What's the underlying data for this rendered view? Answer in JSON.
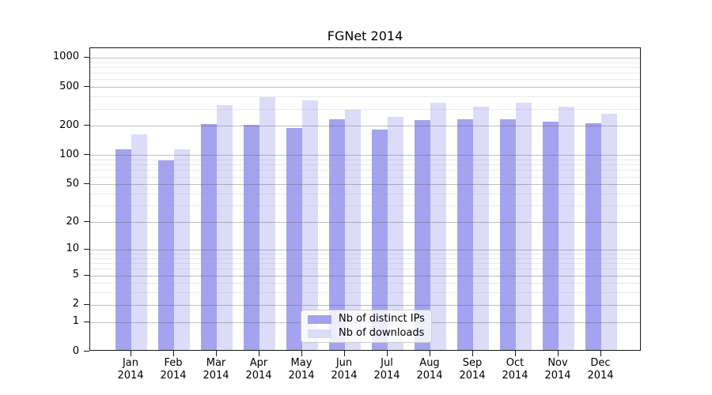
{
  "title": "FGNet 2014",
  "chart_data": {
    "type": "bar",
    "title": "FGNet 2014",
    "categories": [
      "Jan",
      "Feb",
      "Mar",
      "Apr",
      "May",
      "Jun",
      "Jul",
      "Aug",
      "Sep",
      "Oct",
      "Nov",
      "Dec"
    ],
    "category_year": "2014",
    "series": [
      {
        "name": "Nb of distinct IPs",
        "color": "#a3a3f0",
        "values": [
          110,
          85,
          201,
          198,
          183,
          225,
          178,
          222,
          225,
          224,
          215,
          205
        ]
      },
      {
        "name": "Nb of downloads",
        "color": "#dcdcf9",
        "values": [
          157,
          110,
          313,
          377,
          354,
          282,
          239,
          333,
          304,
          332,
          303,
          258
        ]
      }
    ],
    "yscale": "log1p",
    "yticks": [
      0,
      1,
      2,
      5,
      10,
      20,
      50,
      100,
      200,
      500,
      1000
    ],
    "minor_yticks": [
      3,
      4,
      6,
      7,
      8,
      9,
      30,
      40,
      60,
      70,
      80,
      90,
      300,
      400,
      600,
      700,
      800,
      900
    ],
    "ylim": [
      0,
      1250
    ],
    "grid": true,
    "legend_position": "lower center"
  },
  "colors": {
    "bar_distinct_ips": "#a3a3f0",
    "bar_downloads": "#dcdcf9",
    "grid_major": "#b3b3b3",
    "grid_minor": "#e2e2e6",
    "spine": "#1a1a1a",
    "background": "#ffffff"
  }
}
